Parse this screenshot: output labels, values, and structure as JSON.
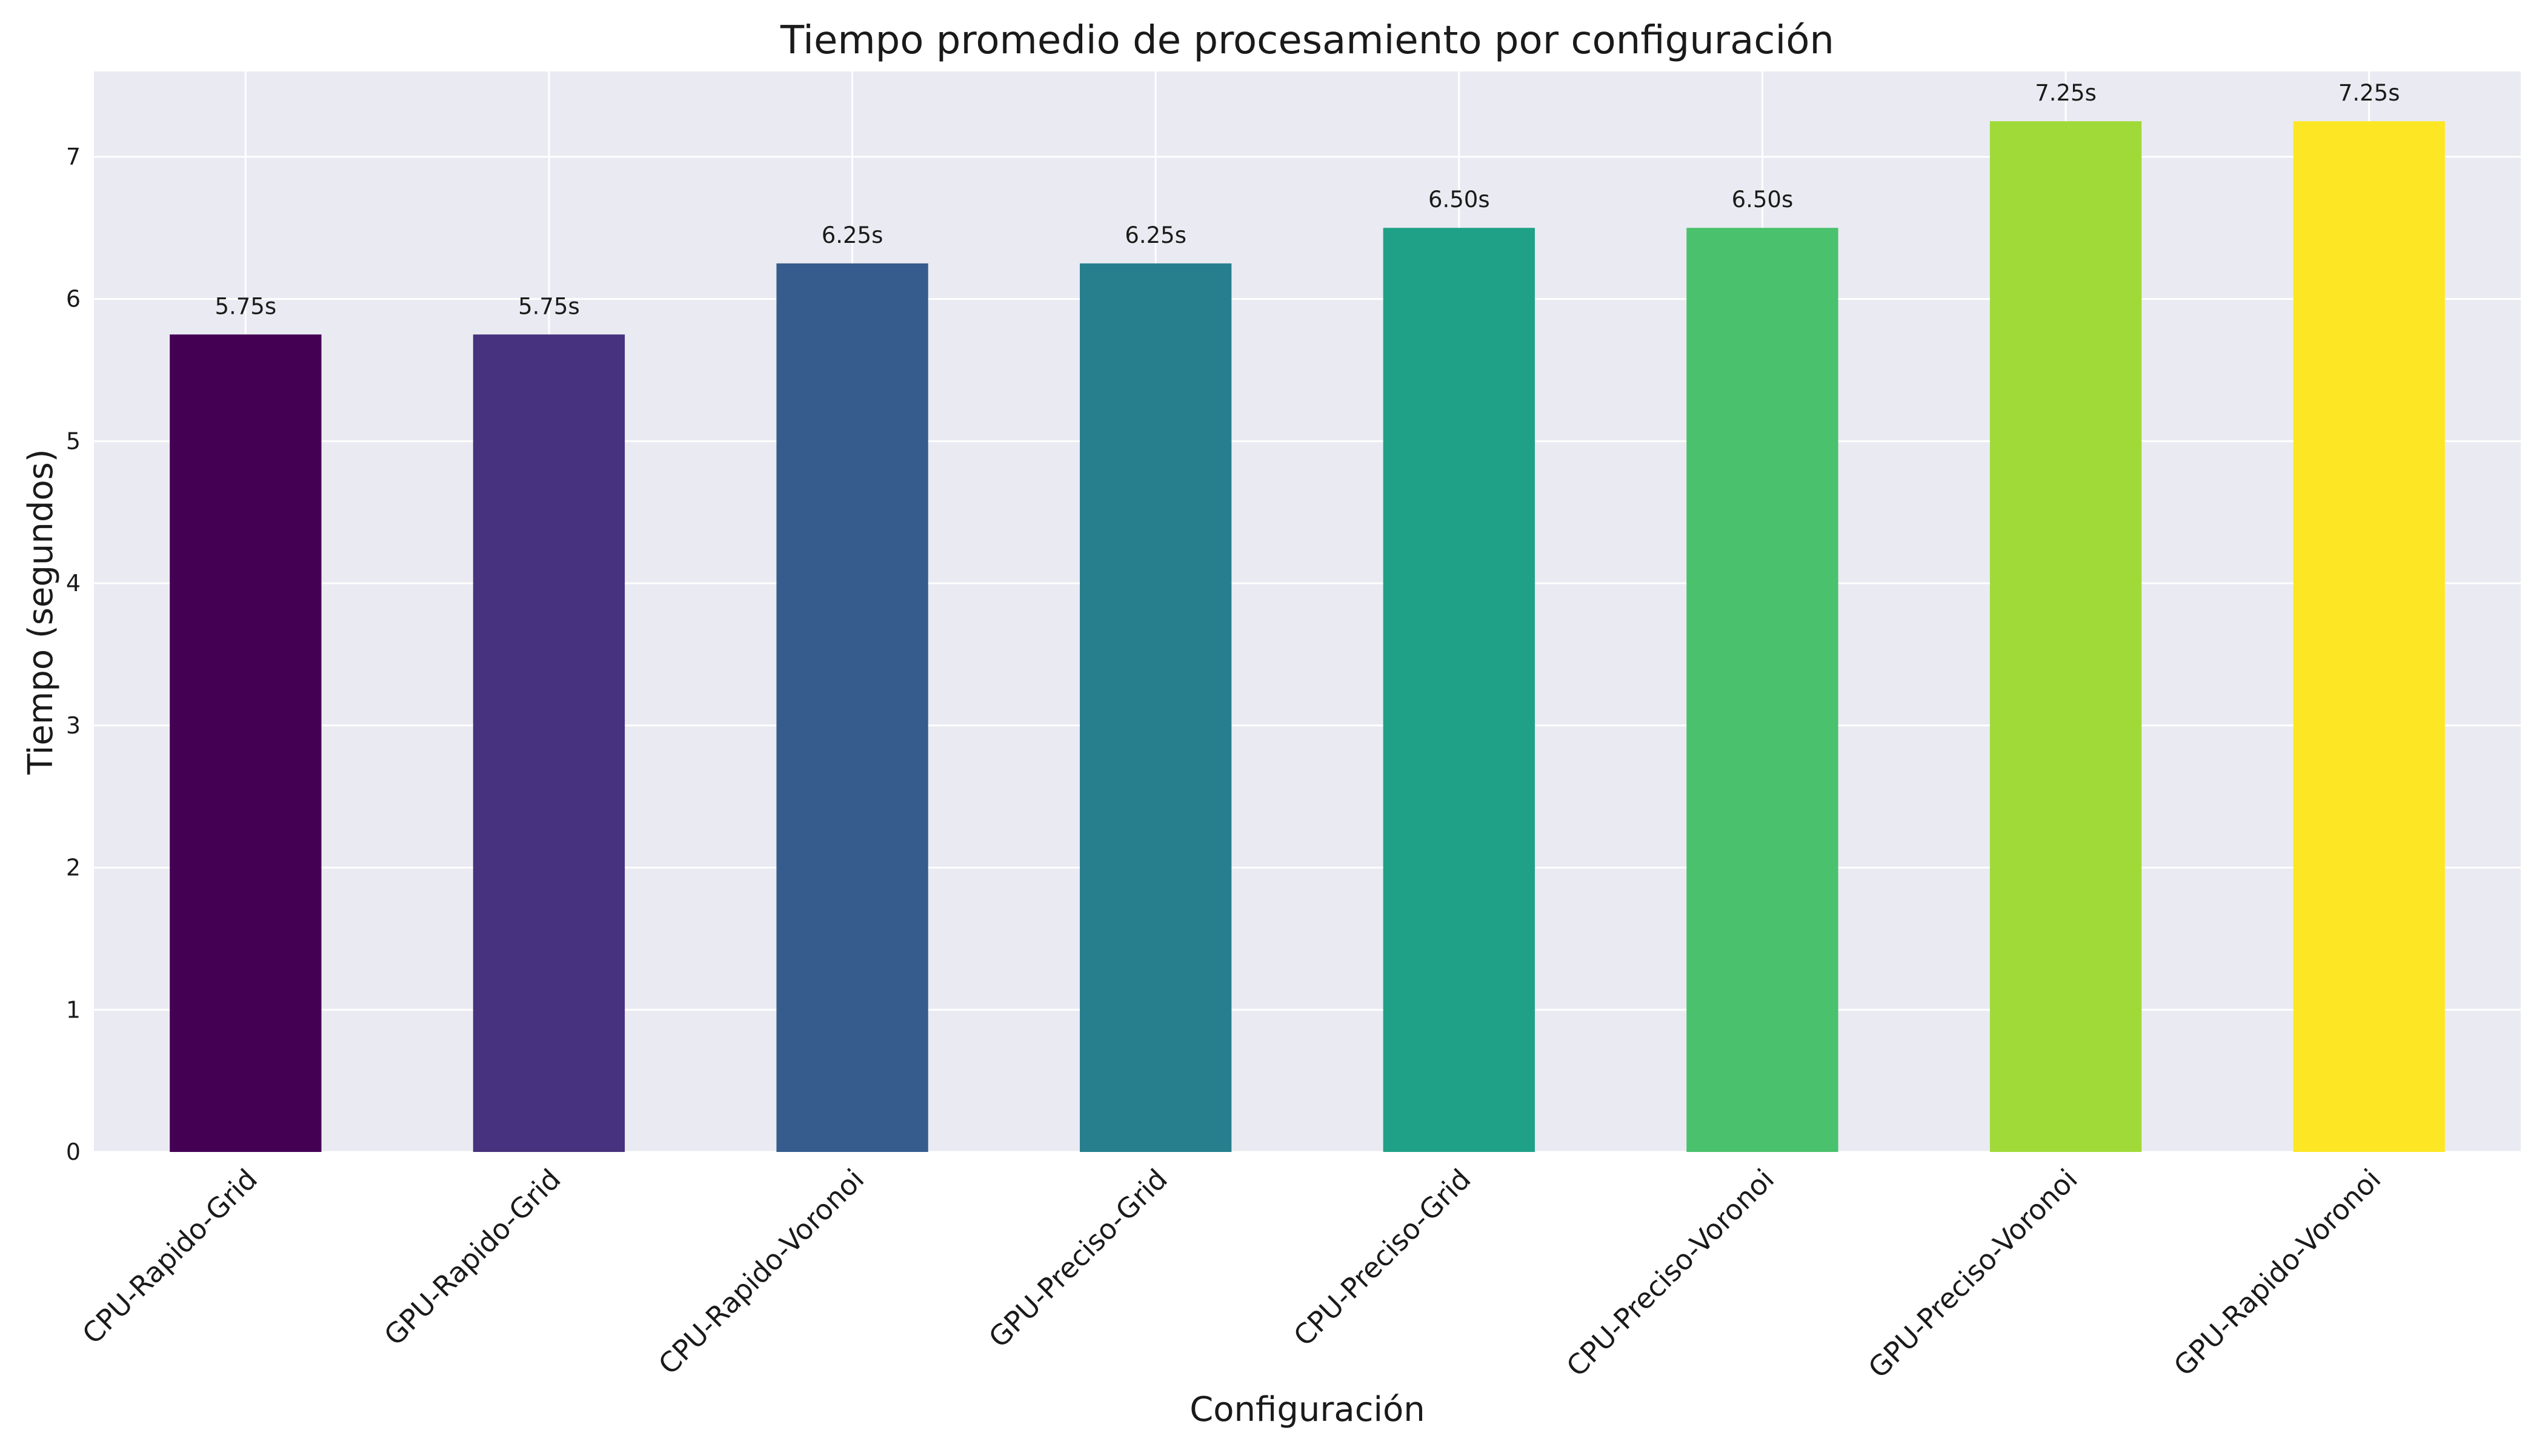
{
  "chart_data": {
    "type": "bar",
    "title": "Tiempo promedio de procesamiento por configuración",
    "xlabel": "Configuración",
    "ylabel": "Tiempo (segundos)",
    "ylim": [
      0,
      7.6
    ],
    "yticks": [
      "0",
      "1",
      "2",
      "3",
      "4",
      "5",
      "6",
      "7"
    ],
    "grid": true,
    "categories": [
      "CPU-Rapido-Grid",
      "GPU-Rapido-Grid",
      "CPU-Rapido-Voronoi",
      "GPU-Preciso-Grid",
      "CPU-Preciso-Grid",
      "CPU-Preciso-Voronoi",
      "GPU-Preciso-Voronoi",
      "GPU-Rapido-Voronoi"
    ],
    "values": [
      5.75,
      5.75,
      6.25,
      6.25,
      6.5,
      6.5,
      7.25,
      7.25
    ],
    "data_labels": [
      "5.75s",
      "5.75s",
      "6.25s",
      "6.25s",
      "6.50s",
      "6.50s",
      "7.25s",
      "7.25s"
    ],
    "colors": [
      "#440154",
      "#46327e",
      "#365c8d",
      "#277f8e",
      "#1fa187",
      "#4ac16d",
      "#a0da39",
      "#fde725"
    ],
    "plot_background": "#eaeaf2",
    "grid_color": "#ffffff"
  }
}
